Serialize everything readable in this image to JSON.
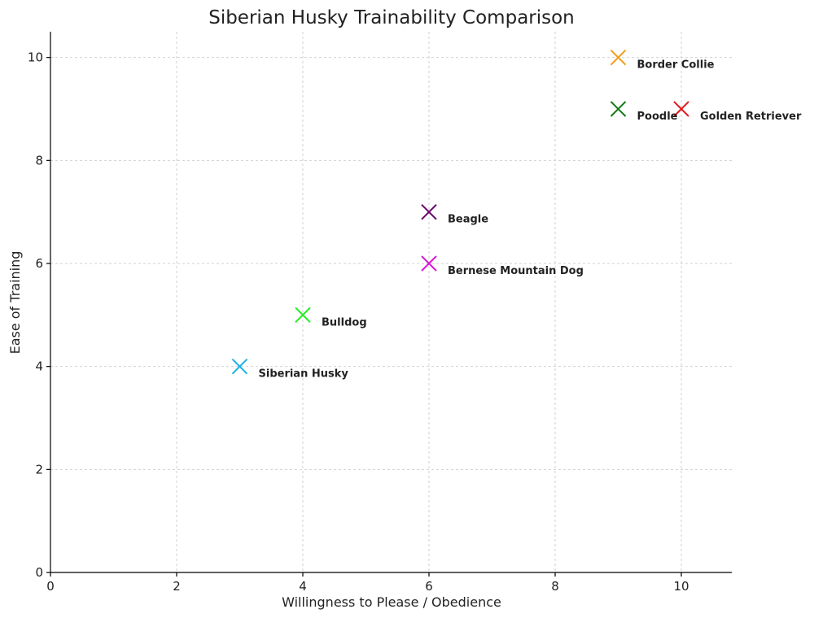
{
  "chart_data": {
    "type": "scatter",
    "title": "Siberian Husky Trainability Comparison",
    "xlabel": "Willingness to Please / Obedience",
    "ylabel": "Ease of Training",
    "xlim": [
      0,
      10.8
    ],
    "ylim": [
      0,
      10.5
    ],
    "xticks": [
      0,
      2,
      4,
      6,
      8,
      10
    ],
    "yticks": [
      0,
      2,
      4,
      6,
      8,
      10
    ],
    "grid": true,
    "marker": "x",
    "points": [
      {
        "label": "Siberian Husky",
        "x": 3,
        "y": 4,
        "color": "#1ab3e6"
      },
      {
        "label": "Golden Retriever",
        "x": 10,
        "y": 9,
        "color": "#e31a1c"
      },
      {
        "label": "Border Collie",
        "x": 9,
        "y": 10,
        "color": "#f59d1a"
      },
      {
        "label": "Poodle",
        "x": 9,
        "y": 9,
        "color": "#137a13"
      },
      {
        "label": "Bulldog",
        "x": 4,
        "y": 5,
        "color": "#22ee22"
      },
      {
        "label": "Beagle",
        "x": 6,
        "y": 7,
        "color": "#6b006b"
      },
      {
        "label": "Bernese Mountain Dog",
        "x": 6,
        "y": 6,
        "color": "#d61ad6"
      }
    ]
  }
}
